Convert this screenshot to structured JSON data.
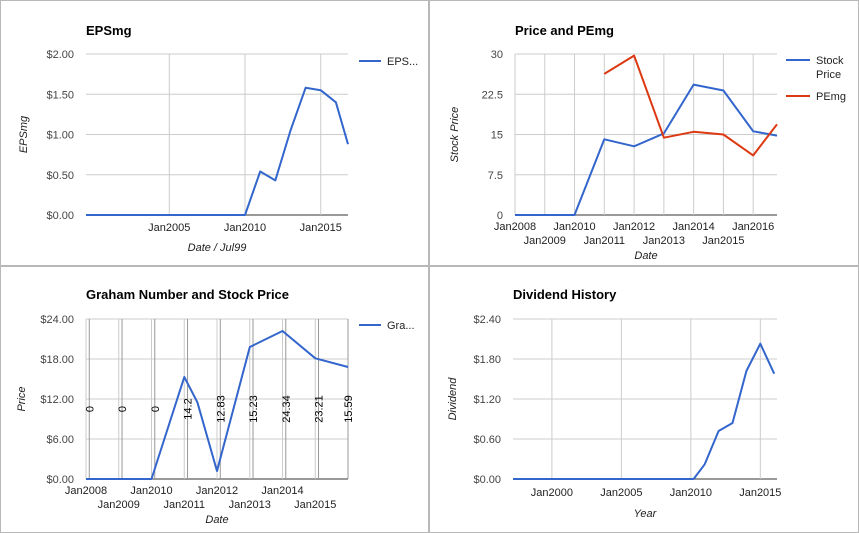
{
  "chart_data": [
    {
      "id": "eps",
      "type": "line",
      "title": "EPSmg",
      "xlabel": "Date / Jul99",
      "ylabel": "EPSmg",
      "x_range": [
        1999.5,
        2016.8
      ],
      "ylim": [
        0,
        2.0
      ],
      "y_ticks": [
        {
          "v": 0,
          "label": "$0.00"
        },
        {
          "v": 0.5,
          "label": "$0.50"
        },
        {
          "v": 1.0,
          "label": "$1.00"
        },
        {
          "v": 1.5,
          "label": "$1.50"
        },
        {
          "v": 2.0,
          "label": "$2.00"
        }
      ],
      "x_ticks": [
        {
          "v": 2005,
          "label": "Jan2005",
          "row": 0
        },
        {
          "v": 2010,
          "label": "Jan2010",
          "row": 0
        },
        {
          "v": 2015,
          "label": "Jan2015",
          "row": 0
        }
      ],
      "legend": [
        "EPS..."
      ],
      "legend_position": "right",
      "grid": true,
      "series": [
        {
          "name": "EPS...",
          "color": "#3366cc",
          "x": [
            1999.5,
            2010.0,
            2011.0,
            2012.0,
            2013.0,
            2014.0,
            2015.0,
            2016.0,
            2016.8
          ],
          "y": [
            0,
            0,
            0.54,
            0.43,
            1.05,
            1.58,
            1.55,
            1.4,
            0.88
          ]
        }
      ]
    },
    {
      "id": "pe",
      "type": "line",
      "title": "Price and PEmg",
      "xlabel": "Date",
      "ylabel": "Stock Price",
      "x_range": [
        2008.0,
        2016.8
      ],
      "ylim": [
        0,
        30
      ],
      "y_ticks": [
        {
          "v": 0,
          "label": "0"
        },
        {
          "v": 7.5,
          "label": "7.5"
        },
        {
          "v": 15,
          "label": "15"
        },
        {
          "v": 22.5,
          "label": "22.5"
        },
        {
          "v": 30,
          "label": "30"
        }
      ],
      "x_ticks": [
        {
          "v": 2008,
          "label": "Jan2008",
          "row": 0
        },
        {
          "v": 2009,
          "label": "Jan2009",
          "row": 1
        },
        {
          "v": 2010,
          "label": "Jan2010",
          "row": 0
        },
        {
          "v": 2011,
          "label": "Jan2011",
          "row": 1
        },
        {
          "v": 2012,
          "label": "Jan2012",
          "row": 0
        },
        {
          "v": 2013,
          "label": "Jan2013",
          "row": 1
        },
        {
          "v": 2014,
          "label": "Jan2014",
          "row": 0
        },
        {
          "v": 2015,
          "label": "Jan2015",
          "row": 1
        },
        {
          "v": 2016,
          "label": "Jan2016",
          "row": 0
        }
      ],
      "legend": [
        "Stock Price",
        "PEmg"
      ],
      "legend_position": "right",
      "grid": true,
      "series": [
        {
          "name": "Stock Price",
          "color": "#3366cc",
          "x": [
            2008.0,
            2010.0,
            2011.0,
            2012.0,
            2013.0,
            2014.0,
            2015.0,
            2016.0,
            2016.8
          ],
          "y": [
            0,
            0,
            14.1,
            12.8,
            15.2,
            24.3,
            23.2,
            15.6,
            14.8
          ]
        },
        {
          "name": "PEmg",
          "color": "#dc3912",
          "x": [
            2011.0,
            2012.0,
            2013.0,
            2014.0,
            2015.0,
            2016.0,
            2016.8
          ],
          "y": [
            26.3,
            29.7,
            14.4,
            15.5,
            15.0,
            11.1,
            16.9
          ]
        }
      ]
    },
    {
      "id": "graham",
      "type": "line",
      "title": "Graham Number and Stock Price",
      "xlabel": "Date",
      "ylabel": "Price",
      "x_range": [
        2008.0,
        2016.0
      ],
      "ylim": [
        0,
        24
      ],
      "y_ticks": [
        {
          "v": 0,
          "label": "$0.00"
        },
        {
          "v": 6,
          "label": "$6.00"
        },
        {
          "v": 12,
          "label": "$12.00"
        },
        {
          "v": 18,
          "label": "$18.00"
        },
        {
          "v": 24,
          "label": "$24.00"
        }
      ],
      "x_ticks": [
        {
          "v": 2008,
          "label": "Jan2008",
          "row": 0
        },
        {
          "v": 2009,
          "label": "Jan2009",
          "row": 1
        },
        {
          "v": 2010,
          "label": "Jan2010",
          "row": 0
        },
        {
          "v": 2011,
          "label": "Jan2011",
          "row": 1
        },
        {
          "v": 2012,
          "label": "Jan2012",
          "row": 0
        },
        {
          "v": 2013,
          "label": "Jan2013",
          "row": 1
        },
        {
          "v": 2014,
          "label": "Jan2014",
          "row": 0
        },
        {
          "v": 2015,
          "label": "Jan2015",
          "row": 1
        }
      ],
      "legend": [
        "Gra..."
      ],
      "legend_position": "right",
      "grid": true,
      "annotations": [
        {
          "x": 2008.1,
          "label": "0"
        },
        {
          "x": 2009.1,
          "label": "0"
        },
        {
          "x": 2010.1,
          "label": "0"
        },
        {
          "x": 2011.1,
          "label": "14.2"
        },
        {
          "x": 2012.1,
          "label": "12.83"
        },
        {
          "x": 2013.1,
          "label": "15.23"
        },
        {
          "x": 2014.1,
          "label": "24.34"
        },
        {
          "x": 2015.1,
          "label": "23.21"
        },
        {
          "x": 2016.0,
          "label": "15.59"
        }
      ],
      "series": [
        {
          "name": "Gra...",
          "color": "#3366cc",
          "x": [
            2008.0,
            2010.0,
            2011.0,
            2011.4,
            2012.0,
            2013.0,
            2014.0,
            2015.0,
            2016.0
          ],
          "y": [
            0,
            0,
            15.3,
            11.5,
            1.2,
            19.8,
            22.2,
            18.1,
            16.8
          ]
        }
      ]
    },
    {
      "id": "div",
      "type": "line",
      "title": "Dividend History",
      "xlabel": "Year",
      "ylabel": "Dividend",
      "x_range": [
        1997.2,
        2016.2
      ],
      "ylim": [
        0,
        2.4
      ],
      "y_ticks": [
        {
          "v": 0,
          "label": "$0.00"
        },
        {
          "v": 0.6,
          "label": "$0.60"
        },
        {
          "v": 1.2,
          "label": "$1.20"
        },
        {
          "v": 1.8,
          "label": "$1.80"
        },
        {
          "v": 2.4,
          "label": "$2.40"
        }
      ],
      "x_ticks": [
        {
          "v": 2000,
          "label": "Jan2000",
          "row": 0
        },
        {
          "v": 2005,
          "label": "Jan2005",
          "row": 0
        },
        {
          "v": 2010,
          "label": "Jan2010",
          "row": 0
        },
        {
          "v": 2015,
          "label": "Jan2015",
          "row": 0
        }
      ],
      "legend": [],
      "grid": true,
      "series": [
        {
          "name": "",
          "color": "#3366cc",
          "x": [
            1997.2,
            2010.2,
            2011.0,
            2012.0,
            2013.0,
            2014.0,
            2015.0,
            2016.0
          ],
          "y": [
            0,
            0,
            0.22,
            0.72,
            0.84,
            1.62,
            2.03,
            1.58
          ]
        }
      ]
    }
  ]
}
